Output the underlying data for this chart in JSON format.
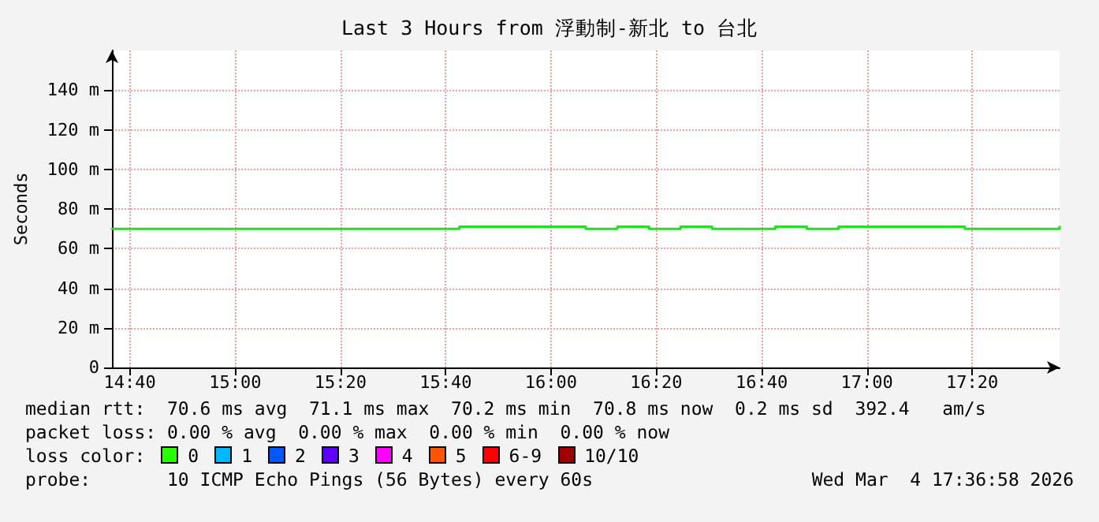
{
  "chart_data": {
    "type": "step",
    "title": "Last 3 Hours from 浮動制-新北 to 台北",
    "ylabel": "Seconds",
    "x": [
      14.61,
      14.71,
      14.81,
      14.91,
      15.01,
      15.11,
      15.21,
      15.31,
      15.41,
      15.51,
      15.61,
      15.71,
      15.81,
      15.91,
      16.01,
      16.11,
      16.21,
      16.31,
      16.41,
      16.51,
      16.61,
      16.71,
      16.81,
      16.91,
      17.01,
      17.11,
      17.21,
      17.31,
      17.41,
      17.51,
      17.61
    ],
    "series": [
      {
        "color": "#20e020",
        "values": [
          70,
          70,
          70,
          70,
          70,
          70,
          70,
          70,
          70,
          70,
          70,
          71,
          71,
          71,
          71,
          70,
          71,
          70,
          71,
          70,
          70,
          71,
          70,
          71,
          71,
          71,
          71,
          70,
          70,
          70,
          71
        ]
      }
    ],
    "xlim": [
      14.61,
      17.61
    ],
    "xticks": [
      {
        "value": 14.6667,
        "label": "14:40"
      },
      {
        "value": 15,
        "label": "15:00"
      },
      {
        "value": 15.3333,
        "label": "15:20"
      },
      {
        "value": 15.6667,
        "label": "15:40"
      },
      {
        "value": 16,
        "label": "16:00"
      },
      {
        "value": 16.3333,
        "label": "16:20"
      },
      {
        "value": 16.6667,
        "label": "16:40"
      },
      {
        "value": 17,
        "label": "17:00"
      },
      {
        "value": 17.3333,
        "label": "17:20"
      }
    ],
    "ylim": [
      0,
      160
    ],
    "yticks": [
      {
        "value": 0,
        "label": "0"
      },
      {
        "value": 20,
        "label": "20 m"
      },
      {
        "value": 40,
        "label": "40 m"
      },
      {
        "value": 60,
        "label": "60 m"
      },
      {
        "value": 80,
        "label": "80 m"
      },
      {
        "value": 100,
        "label": "100 m"
      },
      {
        "value": 120,
        "label": "120 m"
      },
      {
        "value": 140,
        "label": "140 m"
      }
    ],
    "grid": true,
    "marker": "none",
    "line_style": "solid",
    "annotations": [
      "median rtt:  70.6 ms avg  71.1 ms max  70.2 ms min  70.8 ms now  0.2 ms sd  392.4   am/s",
      "packet loss: 0.00 % avg  0.00 % max  0.00 % min  0.00 % now",
      "loss color:",
      "0",
      "1",
      "2",
      "3",
      "4",
      "5",
      "6-9",
      "10/10",
      "probe:       10 ICMP Echo Pings (56 Bytes) every 60s",
      "Wed Mar  4 17:36:58 2026"
    ]
  }
}
